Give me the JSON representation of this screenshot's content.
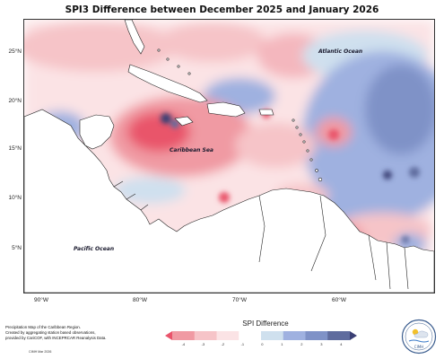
{
  "title": "SPI3 Difference between December 2025 and January 2026",
  "y_axis_labels": [
    "25°N",
    "20°N",
    "15°N",
    "10°N",
    "5°N"
  ],
  "x_axis_labels": [
    "90°W",
    "80°W",
    "70°W",
    "60°W"
  ],
  "map_labels": {
    "atlantic": "Atlantic Ocean",
    "caribbean": "Caribbean Sea",
    "pacific": "Pacific Ocean"
  },
  "caption_lines": [
    "Precipitation Map of the Caribbean Region.",
    "Created by aggregating station based observations,",
    "provided by CariCOF, with INCEPRCAR Reanalysis Data."
  ],
  "caption_credit": "CIMH Mar 2026",
  "legend": {
    "title": "SPI Difference",
    "ticks": [
      "-4",
      "-3",
      "-2",
      "-1",
      "0",
      "1",
      "2",
      "3",
      "4"
    ],
    "colors": [
      "#e9546b",
      "#f09aa3",
      "#f6c4c8",
      "#fbe3e5",
      "#ffffff",
      "#cfe0ee",
      "#9fb1e0",
      "#7f92c7",
      "#5f6c9e",
      "#3a3f74"
    ]
  },
  "logo": {
    "icon": "cimh-seal-icon",
    "text": "CIMH"
  }
}
